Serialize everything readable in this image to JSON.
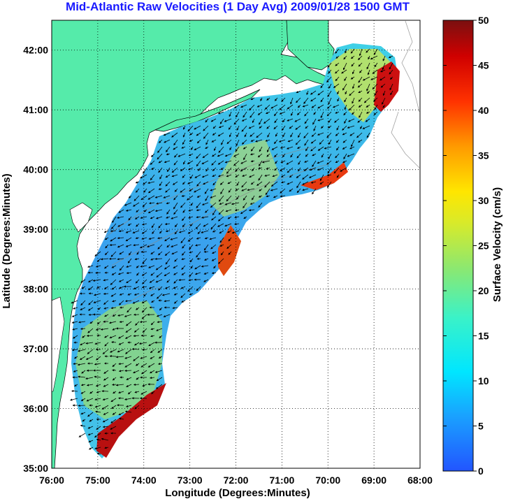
{
  "title": "Mid-Atlantic Raw Velocities (1 Day Avg) 2009/01/28 1500 GMT",
  "xaxis": {
    "label": "Longitude (Degrees:Minutes)",
    "ticks": [
      {
        "value": -76,
        "label": "76:00"
      },
      {
        "value": -75,
        "label": "75:00"
      },
      {
        "value": -74,
        "label": "74:00"
      },
      {
        "value": -73,
        "label": "73:00"
      },
      {
        "value": -72,
        "label": "72:00"
      },
      {
        "value": -71,
        "label": "71:00"
      },
      {
        "value": -70,
        "label": "70:00"
      },
      {
        "value": -69,
        "label": "69:00"
      },
      {
        "value": -68,
        "label": "68:00"
      }
    ],
    "range": [
      -76,
      -68
    ]
  },
  "yaxis": {
    "label": "Latitude (Degrees:Minutes)",
    "ticks": [
      {
        "value": 35,
        "label": "35:00"
      },
      {
        "value": 36,
        "label": "36:00"
      },
      {
        "value": 37,
        "label": "37:00"
      },
      {
        "value": 38,
        "label": "38:00"
      },
      {
        "value": 39,
        "label": "39:00"
      },
      {
        "value": 40,
        "label": "40:00"
      },
      {
        "value": 41,
        "label": "41:00"
      },
      {
        "value": 42,
        "label": "42:00"
      }
    ],
    "range": [
      35,
      42.5
    ]
  },
  "colorbar": {
    "label": "Surface Velocity (cm/s)",
    "range": [
      0,
      50
    ],
    "ticks": [
      {
        "value": 0,
        "label": "0"
      },
      {
        "value": 5,
        "label": "5"
      },
      {
        "value": 10,
        "label": "10"
      },
      {
        "value": 15,
        "label": "15"
      },
      {
        "value": 20,
        "label": "20"
      },
      {
        "value": 25,
        "label": "25"
      },
      {
        "value": 30,
        "label": "30"
      },
      {
        "value": 35,
        "label": "35"
      },
      {
        "value": 40,
        "label": "40"
      },
      {
        "value": 45,
        "label": "45"
      },
      {
        "value": 50,
        "label": "50"
      }
    ]
  },
  "colors": {
    "land": "#55ebaa",
    "grid": "#000000",
    "title": "#1a1aff"
  },
  "grid": true
}
